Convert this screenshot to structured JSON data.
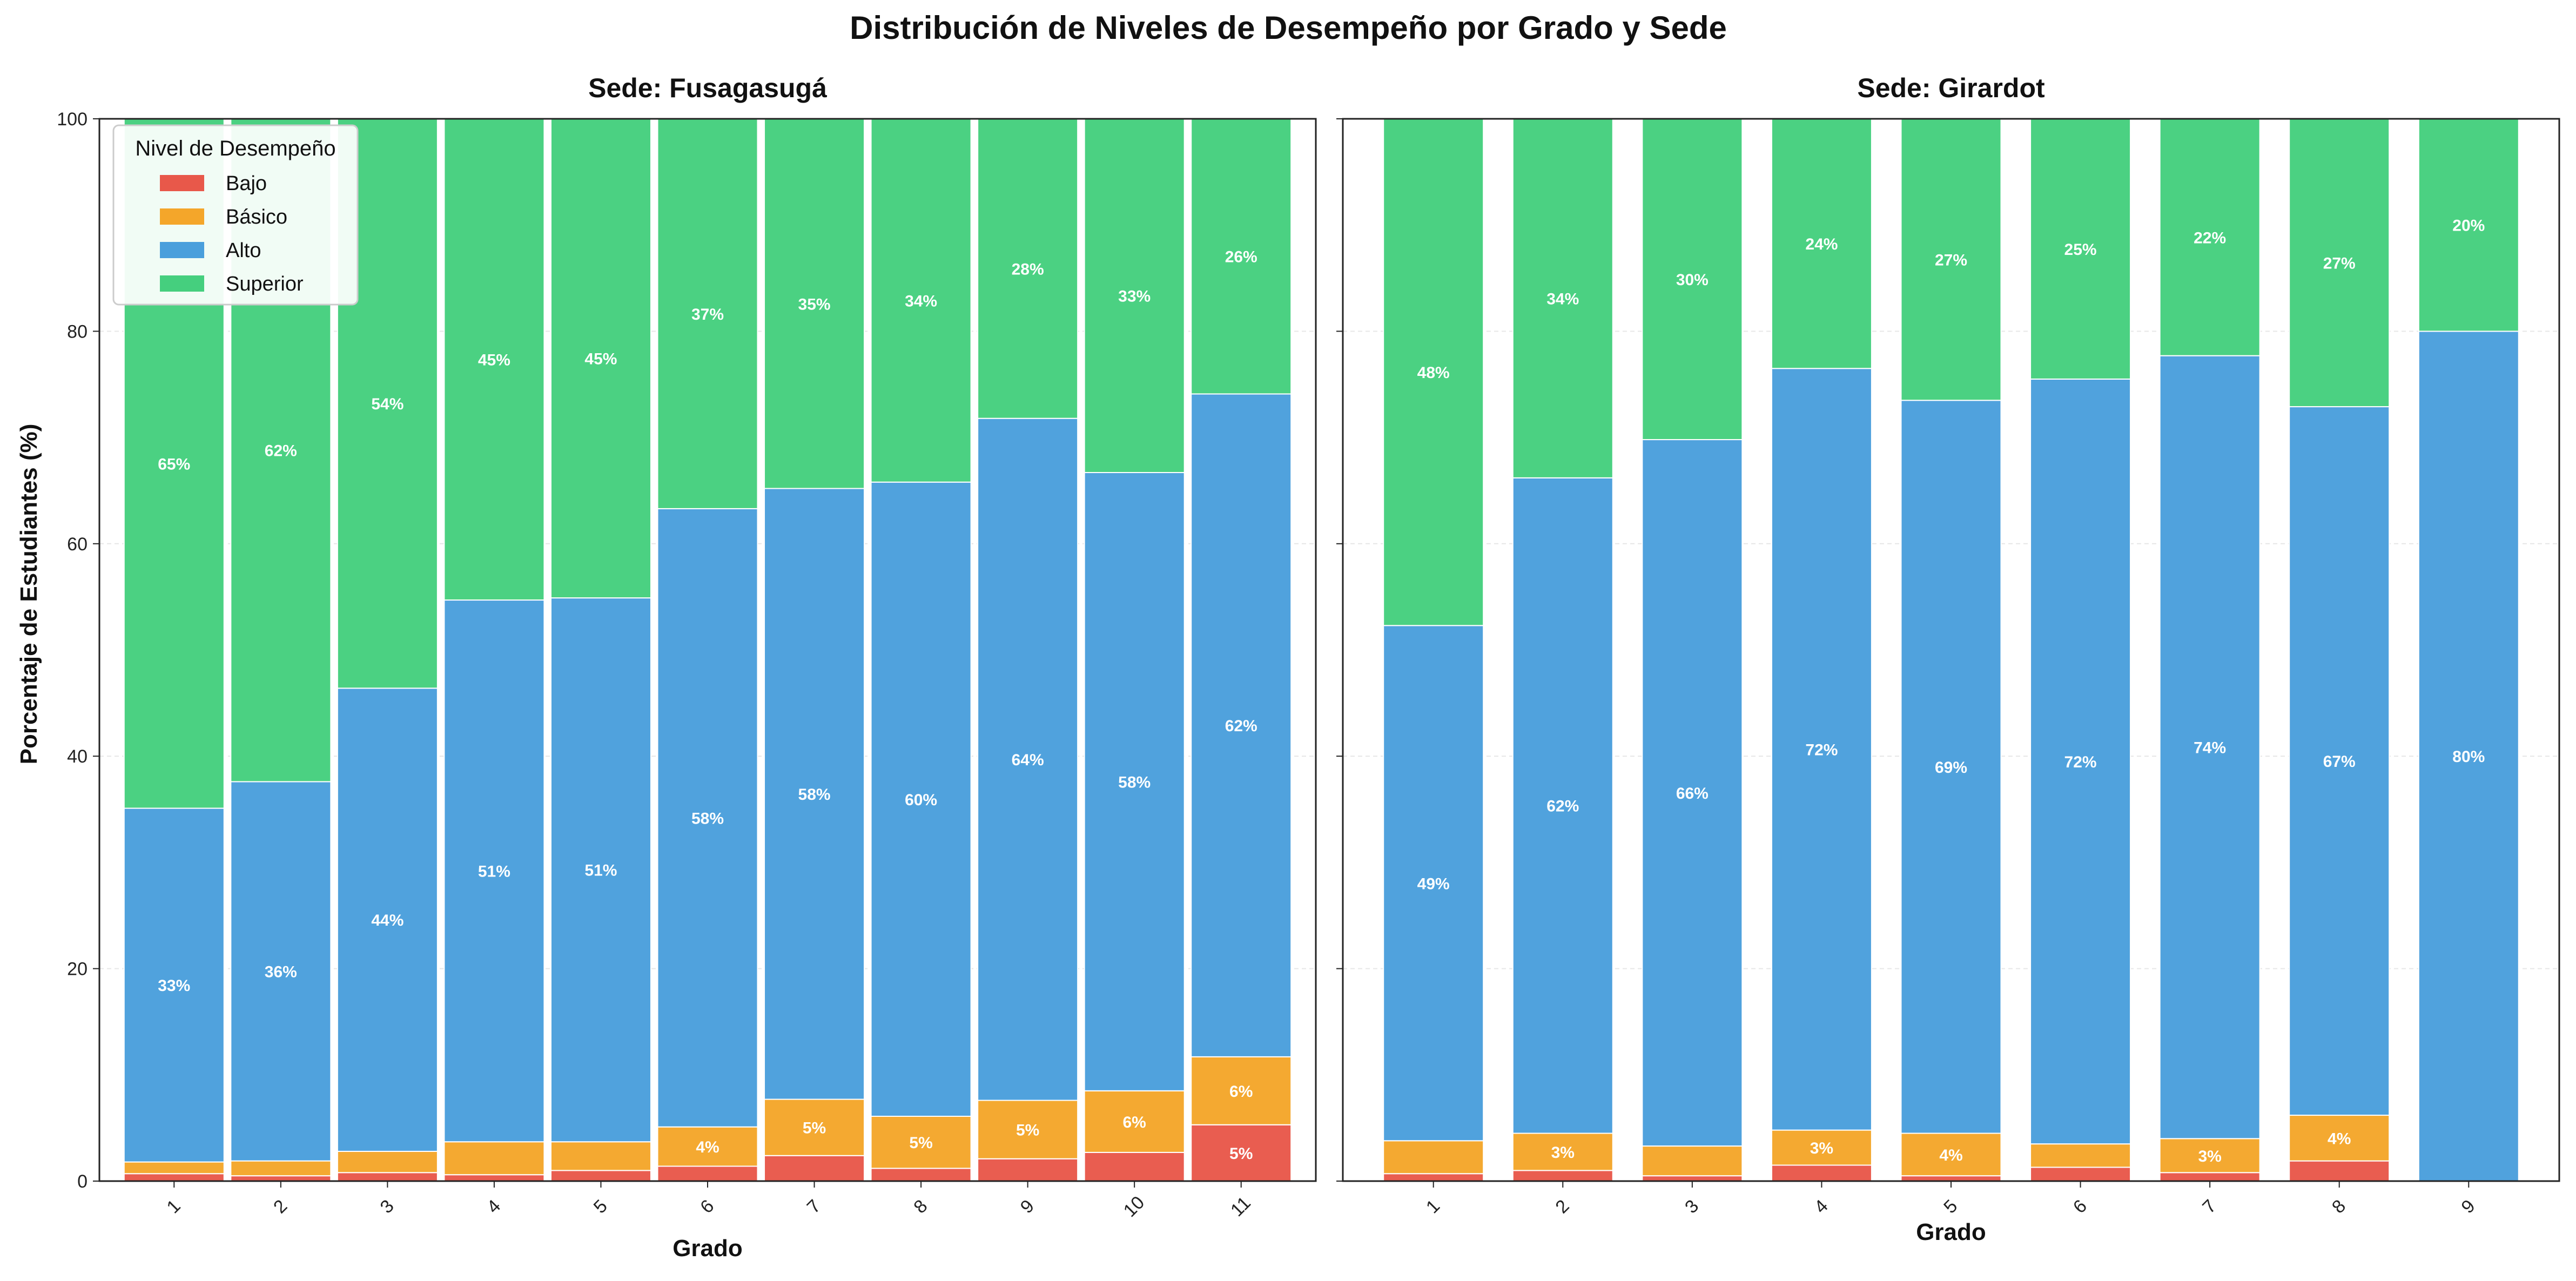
{
  "figure_title": "Distribución de Niveles de Desempeño por Grado y Sede",
  "ylabel": "Porcentaje de Estudiantes (%)",
  "legend": {
    "title": "Nivel de Desempeño",
    "entries": [
      "Bajo",
      "Básico",
      "Alto",
      "Superior"
    ]
  },
  "colors": {
    "Bajo": "#e8584a",
    "Básico": "#f4a62a",
    "Alto": "#4a9fdc",
    "Superior": "#45cf7e",
    "axis": "#222222",
    "grid": "#e6e6e6"
  },
  "chart_data": [
    {
      "type": "bar",
      "stacked": true,
      "title": "Sede: Fusagasugá",
      "xlabel": "Grado",
      "ylabel": "Porcentaje de Estudiantes (%)",
      "ylim": [
        0,
        100
      ],
      "yticks": [
        0,
        20,
        40,
        60,
        80,
        100
      ],
      "grid": true,
      "legend_position": "top-left",
      "categories": [
        "1",
        "2",
        "3",
        "4",
        "5",
        "6",
        "7",
        "8",
        "9",
        "10",
        "11"
      ],
      "series": [
        {
          "name": "Bajo",
          "values": [
            0.7,
            0.5,
            0.8,
            0.6,
            1.0,
            1.4,
            2.4,
            1.2,
            2.1,
            2.7,
            5.3
          ],
          "labels": [
            "",
            "",
            "",
            "",
            "",
            "",
            "",
            "",
            "",
            "",
            "5%"
          ]
        },
        {
          "name": "Básico",
          "values": [
            1.1,
            1.4,
            2.0,
            3.1,
            2.7,
            3.7,
            5.3,
            4.9,
            5.5,
            5.8,
            6.4
          ],
          "labels": [
            "",
            "",
            "",
            "",
            "",
            "4%",
            "5%",
            "5%",
            "5%",
            "6%",
            "6%"
          ]
        },
        {
          "name": "Alto",
          "values": [
            33.3,
            35.7,
            43.6,
            51.0,
            51.2,
            58.2,
            57.5,
            59.7,
            64.2,
            58.2,
            62.4
          ],
          "labels": [
            "33%",
            "36%",
            "44%",
            "51%",
            "51%",
            "58%",
            "58%",
            "60%",
            "64%",
            "58%",
            "62%"
          ]
        },
        {
          "name": "Superior",
          "values": [
            64.9,
            62.4,
            53.6,
            45.3,
            45.1,
            36.7,
            34.8,
            34.2,
            28.2,
            33.3,
            25.9
          ],
          "labels": [
            "65%",
            "62%",
            "54%",
            "45%",
            "45%",
            "37%",
            "35%",
            "34%",
            "28%",
            "33%",
            "26%"
          ]
        }
      ]
    },
    {
      "type": "bar",
      "stacked": true,
      "title": "Sede: Girardot",
      "xlabel": "Grado",
      "ylim": [
        0,
        100
      ],
      "yticks": [
        0,
        20,
        40,
        60,
        80,
        100
      ],
      "grid": true,
      "categories": [
        "1",
        "2",
        "3",
        "4",
        "5",
        "6",
        "7",
        "8",
        "9"
      ],
      "series": [
        {
          "name": "Bajo",
          "values": [
            0.7,
            1.0,
            0.5,
            1.5,
            0.5,
            1.3,
            0.8,
            1.9,
            0.0
          ],
          "labels": [
            "",
            "",
            "",
            "",
            "",
            "",
            "",
            "",
            ""
          ]
        },
        {
          "name": "Básico",
          "values": [
            3.1,
            3.5,
            2.8,
            3.3,
            4.0,
            2.2,
            3.2,
            4.3,
            0.0
          ],
          "labels": [
            "",
            "3%",
            "",
            "3%",
            "4%",
            "",
            "3%",
            "4%",
            ""
          ]
        },
        {
          "name": "Alto",
          "values": [
            48.5,
            61.7,
            66.5,
            71.7,
            69.0,
            72.0,
            73.7,
            66.7,
            80.0
          ],
          "labels": [
            "49%",
            "62%",
            "66%",
            "72%",
            "69%",
            "72%",
            "74%",
            "67%",
            "80%"
          ]
        },
        {
          "name": "Superior",
          "values": [
            47.7,
            33.8,
            30.2,
            23.5,
            26.5,
            24.5,
            22.3,
            27.1,
            20.0
          ],
          "labels": [
            "48%",
            "34%",
            "30%",
            "24%",
            "27%",
            "25%",
            "22%",
            "27%",
            "20%"
          ]
        }
      ]
    }
  ]
}
